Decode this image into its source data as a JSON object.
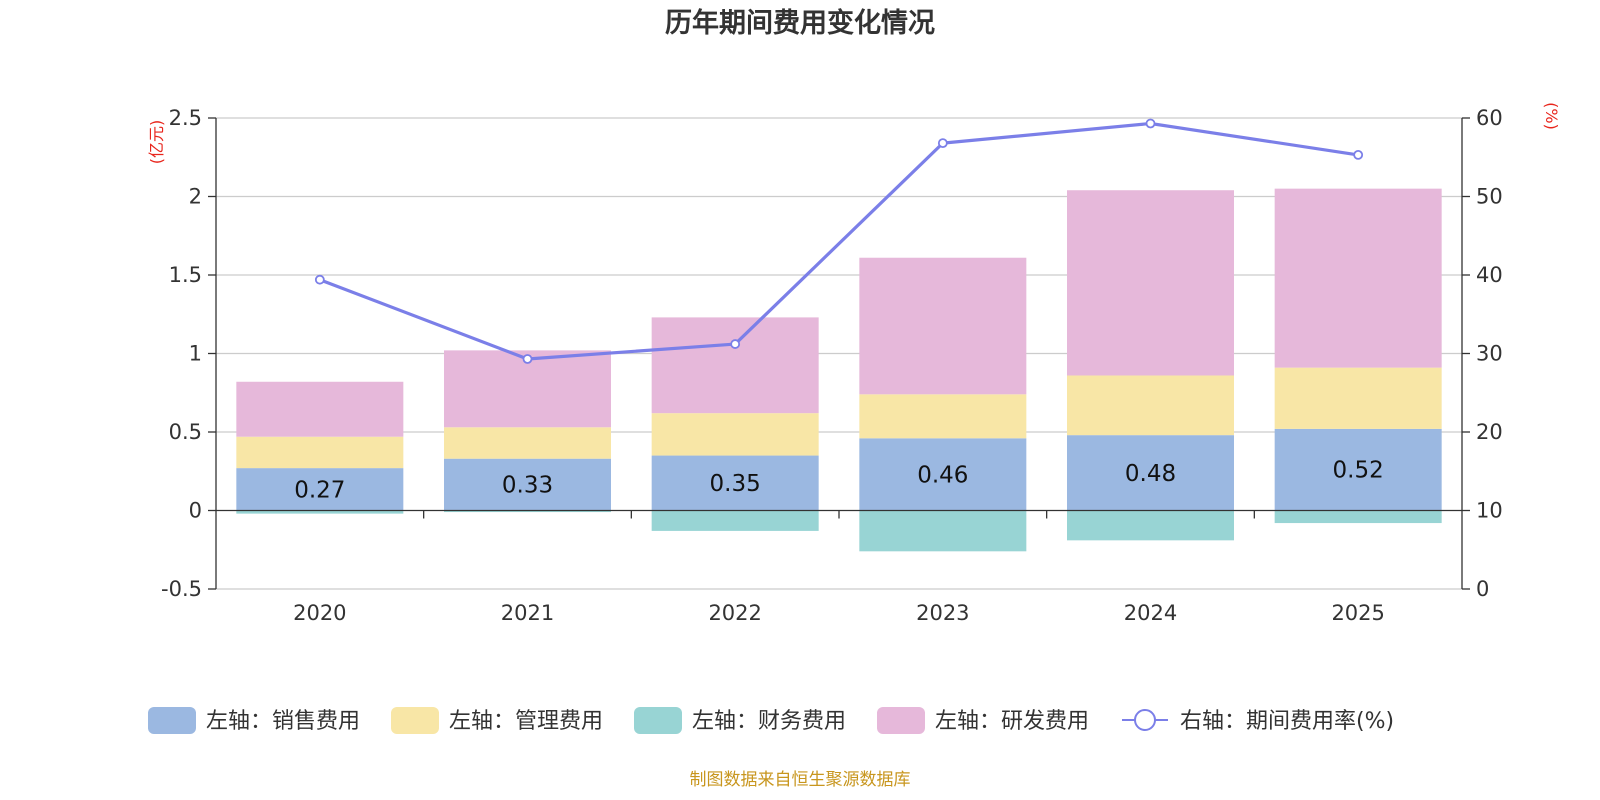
{
  "chart_data": {
    "type": "bar",
    "title": "历年期间费用变化情况",
    "categories": [
      "2020",
      "2021",
      "2022",
      "2023",
      "2024",
      "2025"
    ],
    "stacked": true,
    "series": [
      {
        "name": "左轴：销售费用",
        "axis": "left",
        "color": "#9bb8e1",
        "values": [
          0.27,
          0.33,
          0.35,
          0.46,
          0.48,
          0.52
        ],
        "show_labels": true
      },
      {
        "name": "左轴：管理费用",
        "axis": "left",
        "color": "#f8e6a6",
        "values": [
          0.2,
          0.2,
          0.27,
          0.28,
          0.38,
          0.39
        ],
        "show_labels": false
      },
      {
        "name": "左轴：财务费用",
        "axis": "left",
        "color": "#98d4d4",
        "values": [
          -0.02,
          -0.01,
          -0.13,
          -0.26,
          -0.19,
          -0.08
        ],
        "show_labels": false
      },
      {
        "name": "左轴：研发费用",
        "axis": "left",
        "color": "#e6b8da",
        "values": [
          0.35,
          0.49,
          0.61,
          0.87,
          1.18,
          1.14
        ],
        "show_labels": false
      },
      {
        "name": "右轴：期间费用率(%)",
        "axis": "right",
        "type": "line",
        "color": "#7b7fe8",
        "values": [
          39.4,
          29.3,
          31.2,
          56.8,
          59.3,
          55.3
        ]
      }
    ],
    "yleft": {
      "unit": "(亿元)",
      "ylim": [
        -0.5,
        2.5
      ],
      "ticks": [
        -0.5,
        0,
        0.5,
        1,
        1.5,
        2,
        2.5
      ],
      "tick_labels": [
        "-0.5",
        "0",
        "0.5",
        "1",
        "1.5",
        "2",
        "2.5"
      ]
    },
    "yright": {
      "unit": "(%)",
      "ylim": [
        0,
        60
      ],
      "ticks": [
        0,
        10,
        20,
        30,
        40,
        50,
        60
      ],
      "tick_labels": [
        "0",
        "10",
        "20",
        "30",
        "40",
        "50",
        "60"
      ]
    },
    "grid": true,
    "legend_position": "bottom",
    "source": "制图数据来自恒生聚源数据库"
  }
}
